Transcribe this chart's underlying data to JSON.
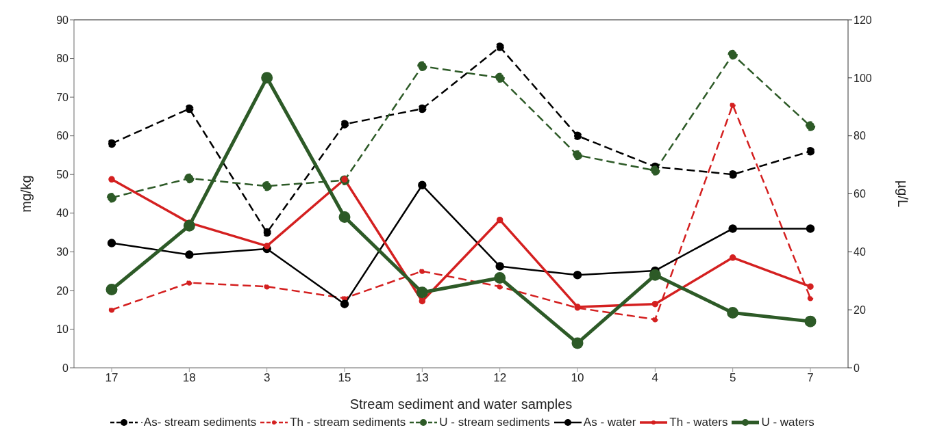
{
  "chart_data": {
    "type": "line",
    "xlabel": "Stream sediment and water samples",
    "ylabel": "mg/kg",
    "y2label": "µg/L",
    "categories": [
      "17",
      "18",
      "3",
      "15",
      "13",
      "12",
      "10",
      "4",
      "5",
      "7"
    ],
    "ylim": [
      0,
      90
    ],
    "yticks": [
      0,
      10,
      20,
      30,
      40,
      50,
      60,
      70,
      80,
      90
    ],
    "y2lim": [
      0,
      120
    ],
    "y2ticks": [
      0,
      20,
      40,
      60,
      80,
      100,
      120
    ],
    "grid": false,
    "legend": "bottom",
    "marker": "circle",
    "series": [
      {
        "name": "·As- stream sediments",
        "color": "#000000",
        "line_style": "dashed",
        "values": [
          58,
          67,
          35,
          63,
          67,
          83,
          60,
          52,
          50,
          56
        ]
      },
      {
        "name": "Th - stream sediments",
        "color": "#d42020",
        "line_style": "dashed",
        "values": [
          15,
          22,
          21,
          18,
          25,
          21,
          15.5,
          12.5,
          68,
          18
        ]
      },
      {
        "name": "U - stream sediments",
        "color": "#2d5a27",
        "line_style": "dashed",
        "values": [
          44,
          49,
          47,
          48.5,
          78,
          75,
          55,
          51,
          81,
          62.5
        ]
      },
      {
        "name": "As - water",
        "color": "#000000",
        "line_style": "solid",
        "axis": "y2",
        "values": [
          43,
          39,
          41,
          22,
          63,
          35,
          32,
          33.5,
          48,
          48
        ]
      },
      {
        "name": "Th - waters",
        "color": "#d42020",
        "line_style": "solid",
        "axis": "y2",
        "values": [
          65,
          50,
          42,
          65,
          23,
          51,
          21,
          22,
          38,
          28
        ]
      },
      {
        "name": "U - waters",
        "color": "#2d5a27",
        "line_style": "solid",
        "axis": "y2",
        "values": [
          27,
          49,
          100,
          52,
          26,
          31,
          8.5,
          32,
          19,
          16
        ]
      }
    ]
  }
}
